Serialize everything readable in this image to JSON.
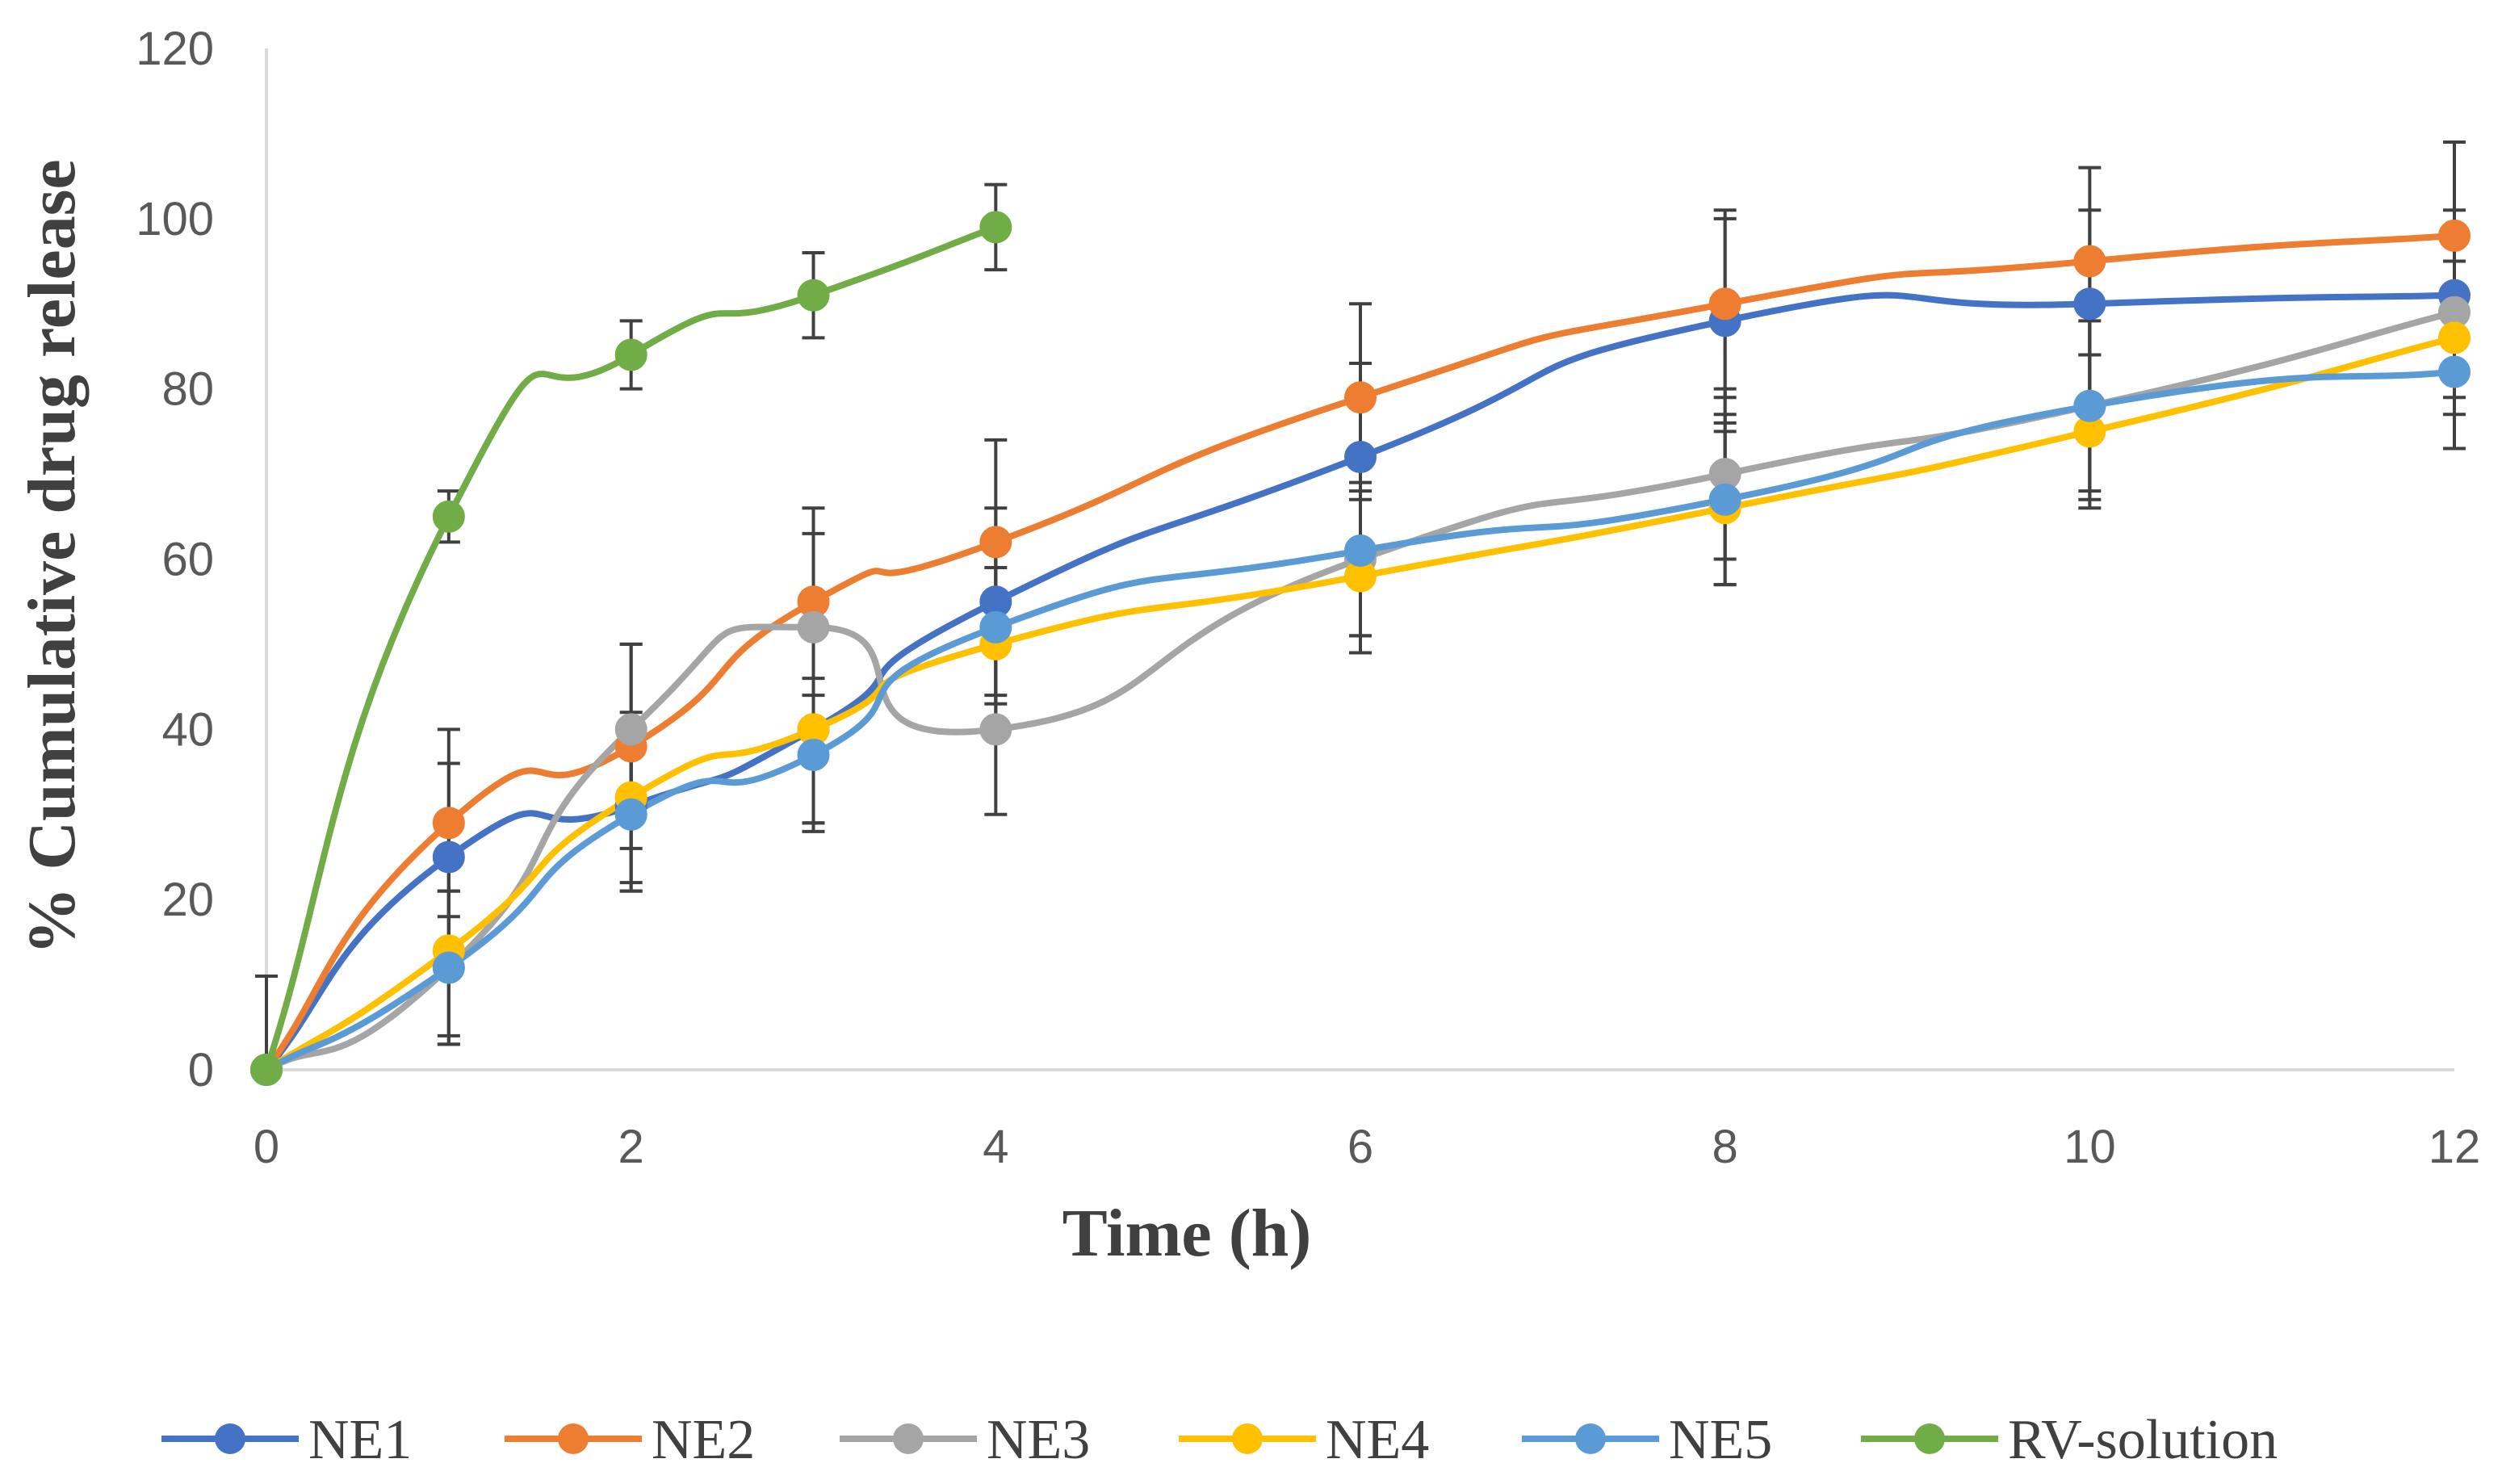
{
  "chart_data": {
    "type": "line",
    "title": "",
    "xlabel": "Time (h)",
    "ylabel": "% Cumulative drug release",
    "xlim": [
      0,
      12
    ],
    "ylim": [
      0,
      120
    ],
    "xticks": [
      0,
      2,
      4,
      6,
      8,
      10,
      12
    ],
    "yticks": [
      0,
      20,
      40,
      60,
      80,
      100,
      120
    ],
    "grid": false,
    "legend_position": "bottom",
    "series": [
      {
        "name": "NE1",
        "color": "#4472C4",
        "x": [
          0,
          1,
          2,
          3,
          4,
          6,
          8,
          10,
          12
        ],
        "y": [
          0,
          25,
          31,
          40,
          55,
          72,
          88,
          90,
          91
        ],
        "err": [
          0,
          11,
          10,
          11,
          11,
          11,
          12,
          11,
          10
        ]
      },
      {
        "name": "NE2",
        "color": "#ED7D31",
        "x": [
          0,
          1,
          2,
          3,
          4,
          6,
          8,
          10,
          12
        ],
        "y": [
          0,
          29,
          38,
          55,
          62,
          79,
          90,
          95,
          98
        ],
        "err": [
          0,
          11,
          12,
          11,
          12,
          11,
          11,
          11,
          11
        ]
      },
      {
        "name": "NE3",
        "color": "#A5A5A5",
        "x": [
          0,
          1,
          2,
          3,
          4,
          6,
          8,
          10,
          12
        ],
        "y": [
          0,
          12,
          40,
          52,
          40,
          60,
          70,
          78,
          89
        ],
        "err": [
          0,
          9,
          10,
          11,
          10,
          9,
          10,
          10,
          10
        ]
      },
      {
        "name": "NE4",
        "color": "#FFC000",
        "x": [
          0,
          1,
          2,
          3,
          4,
          6,
          8,
          10,
          12
        ],
        "y": [
          0,
          14,
          32,
          40,
          50,
          58,
          66,
          75,
          86
        ],
        "err": [
          0,
          10,
          10,
          11,
          9,
          9,
          9,
          9,
          9
        ]
      },
      {
        "name": "NE5",
        "color": "#5B9BD5",
        "x": [
          0,
          1,
          2,
          3,
          4,
          6,
          8,
          10,
          12
        ],
        "y": [
          0,
          12,
          30,
          37,
          52,
          61,
          67,
          78,
          82
        ],
        "err": [
          0,
          9,
          9,
          9,
          9,
          10,
          10,
          11,
          9
        ]
      },
      {
        "name": "RV-solution",
        "color": "#70AD47",
        "x": [
          0,
          1,
          2,
          3,
          4
        ],
        "y": [
          0,
          65,
          84,
          91,
          99
        ],
        "err": [
          11,
          3,
          4,
          5,
          5
        ]
      }
    ]
  }
}
